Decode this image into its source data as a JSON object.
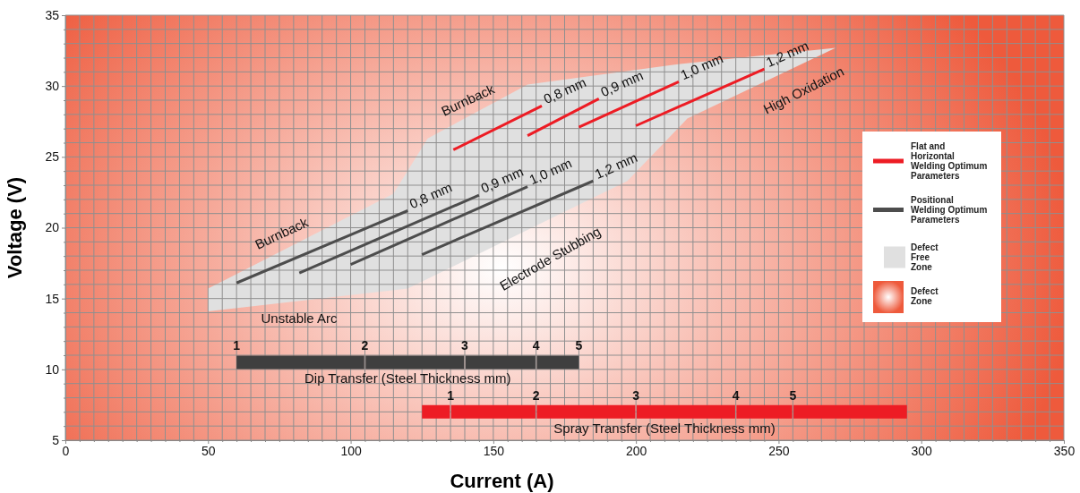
{
  "chart_data": {
    "type": "line",
    "xlabel": "Current (A)",
    "ylabel": "Voltage (V)",
    "xlim": [
      0,
      350
    ],
    "ylim": [
      5,
      35
    ],
    "xticks": [
      0,
      {
        "value": 5,
        "label": null
      },
      {
        "value": 10,
        "label": null
      },
      {
        "value": 15,
        "label": null
      },
      {
        "value": 20,
        "label": null
      },
      {
        "value": 25,
        "label": null
      },
      {
        "value": 30,
        "label": null
      },
      {
        "value": 35,
        "label": null
      },
      {
        "value": 40,
        "label": null
      },
      {
        "value": 45,
        "label": null
      },
      50,
      {
        "value": 55,
        "label": null
      },
      {
        "value": 60,
        "label": null
      },
      {
        "value": 65,
        "label": null
      },
      {
        "value": 70,
        "label": null
      },
      {
        "value": 75,
        "label": null
      },
      {
        "value": 80,
        "label": null
      },
      {
        "value": 85,
        "label": null
      },
      {
        "value": 90,
        "label": null
      },
      {
        "value": 95,
        "label": null
      },
      100,
      {
        "value": 105,
        "label": null
      },
      {
        "value": 110,
        "label": null
      },
      {
        "value": 115,
        "label": null
      },
      {
        "value": 120,
        "label": null
      },
      {
        "value": 125,
        "label": null
      },
      {
        "value": 130,
        "label": null
      },
      {
        "value": 135,
        "label": null
      },
      {
        "value": 140,
        "label": null
      },
      {
        "value": 145,
        "label": null
      },
      150,
      {
        "value": 155,
        "label": null
      },
      {
        "value": 160,
        "label": null
      },
      {
        "value": 165,
        "label": null
      },
      {
        "value": 170,
        "label": null
      },
      {
        "value": 175,
        "label": null
      },
      {
        "value": 180,
        "label": null
      },
      {
        "value": 185,
        "label": null
      },
      {
        "value": 190,
        "label": null
      },
      {
        "value": 195,
        "label": null
      },
      200,
      {
        "value": 205,
        "label": null
      },
      {
        "value": 210,
        "label": null
      },
      {
        "value": 215,
        "label": null
      },
      {
        "value": 220,
        "label": null
      },
      {
        "value": 225,
        "label": null
      },
      {
        "value": 230,
        "label": null
      },
      {
        "value": 235,
        "label": null
      },
      {
        "value": 240,
        "label": null
      },
      {
        "value": 245,
        "label": null
      },
      250,
      {
        "value": 255,
        "label": null
      },
      {
        "value": 260,
        "label": null
      },
      {
        "value": 265,
        "label": null
      },
      {
        "value": 270,
        "label": null
      },
      {
        "value": 275,
        "label": null
      },
      {
        "value": 280,
        "label": null
      },
      {
        "value": 285,
        "label": null
      },
      {
        "value": 290,
        "label": null
      },
      {
        "value": 295,
        "label": null
      },
      300,
      {
        "value": 305,
        "label": null
      },
      {
        "value": 310,
        "label": null
      },
      {
        "value": 315,
        "label": null
      },
      {
        "value": 320,
        "label": null
      },
      {
        "value": 325,
        "label": null
      },
      {
        "value": 330,
        "label": null
      },
      {
        "value": 335,
        "label": null
      },
      {
        "value": 340,
        "label": null
      },
      {
        "value": 345,
        "label": null
      },
      350
    ],
    "yticks": [
      5,
      {
        "value": 6,
        "label": null
      },
      {
        "value": 7,
        "label": null
      },
      {
        "value": 8,
        "label": null
      },
      {
        "value": 9,
        "label": null
      },
      10,
      {
        "value": 11,
        "label": null
      },
      {
        "value": 12,
        "label": null
      },
      {
        "value": 13,
        "label": null
      },
      {
        "value": 14,
        "label": null
      },
      15,
      {
        "value": 16,
        "label": null
      },
      {
        "value": 17,
        "label": null
      },
      {
        "value": 18,
        "label": null
      },
      {
        "value": 19,
        "label": null
      },
      20,
      {
        "value": 21,
        "label": null
      },
      {
        "value": 22,
        "label": null
      },
      {
        "value": 23,
        "label": null
      },
      {
        "value": 24,
        "label": null
      },
      25,
      {
        "value": 26,
        "label": null
      },
      {
        "value": 27,
        "label": null
      },
      {
        "value": 28,
        "label": null
      },
      {
        "value": 29,
        "label": null
      },
      30,
      {
        "value": 31,
        "label": null
      },
      {
        "value": 32,
        "label": null
      },
      {
        "value": 33,
        "label": null
      },
      {
        "value": 34,
        "label": null
      },
      35
    ],
    "grid": true,
    "legend": "right",
    "bands": [
      {
        "axis": "x",
        "from": 0,
        "to": 350,
        "label": "Defect Zone",
        "color": "#ee5a3c"
      }
    ],
    "series": [
      {
        "name": "Defect Free Zone",
        "type": "area",
        "color": "#e0e0e0",
        "x": [
          50,
          120,
          197,
          218,
          270,
          213,
          162,
          127,
          115,
          50
        ],
        "values": [
          14.1,
          15.7,
          23.3,
          27.7,
          32.7,
          31.5,
          30.1,
          26.3,
          22.4,
          15.7
        ]
      },
      {
        "name": "Flat and Horizontal Welding Optimum Parameters",
        "color": "#ed1c24",
        "x": [
          136,
          167,
          null,
          162,
          187,
          null,
          180,
          215,
          null,
          200,
          245
        ],
        "values": [
          25.5,
          28.6,
          null,
          26.5,
          29.1,
          null,
          27.1,
          30.3,
          null,
          27.2,
          31.2
        ]
      },
      {
        "name": "Positional Welding Optimum Parameters",
        "color": "#4d4d4d",
        "x": [
          60,
          120,
          null,
          82,
          145,
          null,
          100,
          162,
          null,
          125,
          185
        ],
        "values": [
          16.1,
          21.2,
          null,
          16.8,
          22.3,
          null,
          17.4,
          22.9,
          null,
          18.1,
          23.3
        ]
      },
      {
        "name": "Dip Transfer (Steel Thickness mm)",
        "color": "#3f3f3f",
        "x": [
          60,
          105,
          140,
          165,
          180
        ],
        "values": [
          10.5,
          10.5,
          10.5,
          10.5,
          10.5
        ]
      },
      {
        "name": "Spray Transfer (Steel Thickness mm)",
        "color": "#ed1c24",
        "x": [
          125,
          135,
          165,
          200,
          235,
          255,
          295
        ],
        "values": [
          7,
          7,
          7,
          7,
          7,
          7,
          7
        ]
      }
    ],
    "annotations": [
      "Burnback",
      "Burnback",
      "Unstable Arc",
      "Electrode Stubbing",
      "High Oxidation",
      {
        "text": "0,8 mm",
        "x": 167,
        "y": 28.6
      },
      {
        "text": "0,9 mm",
        "x": 187,
        "y": 29.1
      },
      {
        "text": "1,0 mm",
        "x": 215,
        "y": 30.3
      },
      {
        "text": "1,2 mm",
        "x": 245,
        "y": 31.2
      },
      {
        "text": "0,8 mm",
        "x": 120,
        "y": 21.2
      },
      {
        "text": "0,9 mm",
        "x": 145,
        "y": 22.3
      },
      {
        "text": "1,0 mm",
        "x": 162,
        "y": 22.9
      },
      {
        "text": "1,2 mm",
        "x": 185,
        "y": 23.3
      },
      {
        "text": "1",
        "x": 60,
        "y": 10.5
      },
      {
        "text": "2",
        "x": 105,
        "y": 10.5
      },
      {
        "text": "3",
        "x": 140,
        "y": 10.5
      },
      {
        "text": "4",
        "x": 165,
        "y": 10.5
      },
      {
        "text": "5",
        "x": 180,
        "y": 10.5
      },
      {
        "text": "1",
        "x": 135,
        "y": 7
      },
      {
        "text": "2",
        "x": 165,
        "y": 7
      },
      {
        "text": "3",
        "x": 200,
        "y": 7
      },
      {
        "text": "4",
        "x": 235,
        "y": 7
      },
      {
        "text": "5",
        "x": 255,
        "y": 7
      }
    ]
  }
}
